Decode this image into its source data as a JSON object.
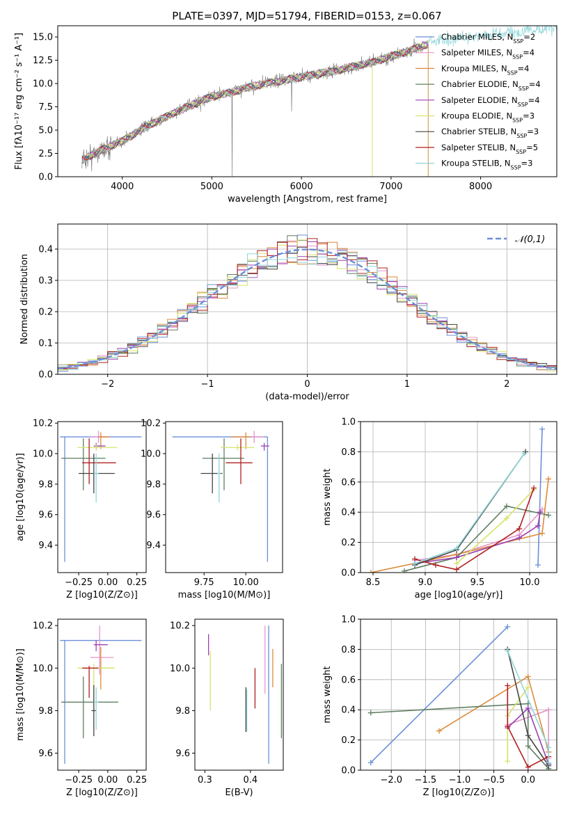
{
  "title": "PLATE=0397, MJD=51794, FIBERID=0153, z=0.067",
  "colors": {
    "series": [
      "#6a8fd8",
      "#e694c9",
      "#dd8a3a",
      "#5e7e60",
      "#9b3fb3",
      "#d6e36a",
      "#444444",
      "#b01e1e",
      "#8fd6d9"
    ],
    "data": "#808080",
    "normal": "#6a8fd8"
  },
  "legend": [
    {
      "name": "Chabrier MILES",
      "n": "2"
    },
    {
      "name": "Salpeter MILES",
      "n": "4"
    },
    {
      "name": "Kroupa MILES",
      "n": "4"
    },
    {
      "name": "Chabrier ELODIE",
      "n": "4"
    },
    {
      "name": "Salpeter ELODIE",
      "n": "4"
    },
    {
      "name": "Kroupa ELODIE",
      "n": "3"
    },
    {
      "name": "Chabrier STELIB",
      "n": "3"
    },
    {
      "name": "Salpeter STELIB",
      "n": "5"
    },
    {
      "name": "Kroupa STELIB",
      "n": "3"
    }
  ],
  "legend_n_label": "N",
  "legend_n_sub": "SSP",
  "chart_data": [
    {
      "id": "spectrum",
      "type": "line",
      "xlabel": "wavelength [Angstrom, rest frame]",
      "ylabel": "Flux [fλ10⁻¹⁷ erg cm⁻² s⁻¹ A⁻¹]",
      "xlim": [
        3280,
        8850
      ],
      "ylim": [
        0,
        16.2
      ],
      "xticks": [
        4000,
        5000,
        6000,
        7000,
        8000
      ],
      "yticks": [
        0.0,
        2.5,
        5.0,
        7.5,
        10.0,
        12.5,
        15.0
      ],
      "continuum": {
        "x": [
          3550,
          3800,
          4000,
          4200,
          4500,
          4800,
          5000,
          5300,
          5600,
          6000,
          6400,
          6800,
          7200,
          7400
        ],
        "y": [
          1.8,
          3.0,
          3.8,
          5.0,
          6.5,
          7.8,
          8.6,
          9.3,
          10.0,
          10.7,
          11.4,
          12.3,
          13.5,
          14.2
        ]
      },
      "legend_position": "right"
    },
    {
      "id": "residuals",
      "type": "histogram",
      "xlabel": "(data-model)/error",
      "ylabel": "Normed distribution",
      "xlim": [
        -2.5,
        2.5
      ],
      "ylim": [
        0,
        0.48
      ],
      "xticks": [
        -2,
        -1,
        0,
        1,
        2
      ],
      "yticks": [
        0.0,
        0.1,
        0.2,
        0.3,
        0.4
      ],
      "bin_width": 0.1,
      "legend": "𝒩(0,1)",
      "legend_position": "top-right",
      "normal": {
        "mean": 0,
        "sigma": 1
      }
    },
    {
      "id": "z_age",
      "type": "errorbar",
      "xlabel": "Z [log10(Z/Z⊙)]",
      "ylabel": "age [log10(age/yr)]",
      "xlim": [
        -0.43,
        0.33
      ],
      "ylim": [
        9.22,
        10.21
      ],
      "xticks": [
        -0.25,
        0.0,
        0.25
      ],
      "yticks": [
        9.4,
        9.6,
        9.8,
        10.0,
        10.2
      ],
      "points": [
        {
          "x": -0.37,
          "y": 10.11,
          "xerr": [
            0.04,
            0.66
          ],
          "yerr": [
            0.82,
            0.0
          ]
        },
        {
          "x": -0.08,
          "y": 10.11,
          "xerr": [
            0.07,
            0.08
          ],
          "yerr": [
            0.04,
            0.04
          ]
        },
        {
          "x": -0.06,
          "y": 10.11,
          "xerr": [
            0.02,
            0.08
          ],
          "yerr": [
            0.08,
            0.03
          ]
        },
        {
          "x": -0.21,
          "y": 9.97,
          "xerr": [
            0.19,
            0.19
          ],
          "yerr": [
            0.21,
            0.13
          ]
        },
        {
          "x": -0.1,
          "y": 10.05,
          "xerr": [
            0.02,
            0.08
          ],
          "yerr": [
            0.03,
            0.02
          ]
        },
        {
          "x": -0.1,
          "y": 10.04,
          "xerr": [
            0.16,
            0.18
          ],
          "yerr": [
            0.02,
            0.02
          ]
        },
        {
          "x": -0.12,
          "y": 9.87,
          "xerr": [
            0.13,
            0.18
          ],
          "yerr": [
            0.13,
            0.13
          ]
        },
        {
          "x": -0.16,
          "y": 9.94,
          "xerr": [
            0.06,
            0.23
          ],
          "yerr": [
            0.14,
            0.16
          ]
        },
        {
          "x": -0.1,
          "y": 9.87,
          "xerr": [
            0.02,
            0.02
          ],
          "yerr": [
            0.19,
            0.13
          ]
        }
      ]
    },
    {
      "id": "mass_age",
      "type": "errorbar",
      "xlabel": "mass [log10(M/M⊙)]",
      "ylabel": "",
      "xlim": [
        9.52,
        10.22
      ],
      "ylim": [
        9.22,
        10.21
      ],
      "xticks": [
        9.75,
        10.0
      ],
      "yticks": [
        9.4,
        9.6,
        9.8,
        10.0,
        10.2
      ],
      "points": [
        {
          "x": 10.13,
          "y": 10.11,
          "xerr": [
            0.57,
            0.0
          ],
          "yerr": [
            0.82,
            0.0
          ]
        },
        {
          "x": 10.05,
          "y": 10.11,
          "xerr": [
            0.02,
            0.06
          ],
          "yerr": [
            0.04,
            0.04
          ]
        },
        {
          "x": 10.0,
          "y": 10.11,
          "xerr": [
            0.09,
            0.03
          ],
          "yerr": [
            0.08,
            0.03
          ]
        },
        {
          "x": 9.87,
          "y": 9.97,
          "xerr": [
            0.13,
            0.12
          ],
          "yerr": [
            0.21,
            0.13
          ]
        },
        {
          "x": 10.11,
          "y": 10.05,
          "xerr": [
            0.02,
            0.03
          ],
          "yerr": [
            0.03,
            0.02
          ]
        },
        {
          "x": 9.95,
          "y": 10.04,
          "xerr": [
            0.1,
            0.1
          ],
          "yerr": [
            0.02,
            0.02
          ]
        },
        {
          "x": 9.8,
          "y": 9.87,
          "xerr": [
            0.07,
            0.06
          ],
          "yerr": [
            0.13,
            0.13
          ]
        },
        {
          "x": 9.97,
          "y": 9.94,
          "xerr": [
            0.09,
            0.07
          ],
          "yerr": [
            0.14,
            0.16
          ]
        },
        {
          "x": 9.84,
          "y": 9.87,
          "xerr": [
            0.01,
            0.01
          ],
          "yerr": [
            0.19,
            0.13
          ]
        }
      ]
    },
    {
      "id": "age_weight",
      "type": "line",
      "xlabel": "age [log10(age/yr)]",
      "ylabel": "mass weight",
      "xlim": [
        8.38,
        10.26
      ],
      "ylim": [
        0,
        1.0
      ],
      "xticks": [
        8.5,
        9.0,
        9.5,
        10.0
      ],
      "yticks": [
        0.0,
        0.2,
        0.4,
        0.6,
        0.8,
        1.0
      ],
      "series": [
        {
          "x": [
            10.08,
            10.12
          ],
          "y": [
            0.05,
            0.95
          ]
        },
        {
          "x": [
            8.9,
            9.3,
            9.9,
            10.1,
            10.12
          ],
          "y": [
            0.08,
            0.12,
            0.25,
            0.4,
            0.42
          ]
        },
        {
          "x": [
            8.48,
            9.3,
            10.12,
            10.18
          ],
          "y": [
            0.0,
            0.12,
            0.26,
            0.62
          ]
        },
        {
          "x": [
            8.8,
            9.3,
            9.78,
            10.18
          ],
          "y": [
            0.01,
            0.1,
            0.44,
            0.38
          ]
        },
        {
          "x": [
            8.9,
            9.3,
            9.9,
            10.08,
            10.1
          ],
          "y": [
            0.06,
            0.1,
            0.23,
            0.31,
            0.4
          ]
        },
        {
          "x": [
            9.3,
            9.78,
            10.04
          ],
          "y": [
            0.06,
            0.36,
            0.55
          ]
        },
        {
          "x": [
            8.9,
            9.3,
            9.96
          ],
          "y": [
            0.05,
            0.15,
            0.8
          ]
        },
        {
          "x": [
            8.9,
            9.1,
            9.3,
            9.9,
            10.04
          ],
          "y": [
            0.09,
            0.05,
            0.02,
            0.29,
            0.56
          ]
        },
        {
          "x": [
            8.9,
            9.3,
            9.95
          ],
          "y": [
            0.06,
            0.16,
            0.79
          ]
        }
      ]
    },
    {
      "id": "z_mass",
      "type": "errorbar",
      "xlabel": "Z [log10(Z/Z⊙)]",
      "ylabel": "mass [log10(M/M⊙)]",
      "xlim": [
        -0.43,
        0.33
      ],
      "ylim": [
        9.52,
        10.23
      ],
      "xticks": [
        -0.25,
        0.0,
        0.25
      ],
      "yticks": [
        9.6,
        9.8,
        10.0,
        10.2
      ],
      "points": [
        {
          "x": -0.37,
          "y": 10.13,
          "xerr": [
            0.04,
            0.66
          ],
          "yerr": [
            0.58,
            0.0
          ]
        },
        {
          "x": -0.07,
          "y": 10.05,
          "xerr": [
            0.08,
            0.12
          ],
          "yerr": [
            0.08,
            0.15
          ]
        },
        {
          "x": -0.06,
          "y": 10.0,
          "xerr": [
            0.02,
            0.08
          ],
          "yerr": [
            0.1,
            0.1
          ]
        },
        {
          "x": -0.21,
          "y": 9.84,
          "xerr": [
            0.19,
            0.3
          ],
          "yerr": [
            0.17,
            0.12
          ]
        },
        {
          "x": -0.1,
          "y": 10.11,
          "xerr": [
            0.02,
            0.1
          ],
          "yerr": [
            0.03,
            0.02
          ]
        },
        {
          "x": -0.12,
          "y": 10.0,
          "xerr": [
            0.14,
            0.18
          ],
          "yerr": [
            0.2,
            0.02
          ]
        },
        {
          "x": -0.12,
          "y": 9.8,
          "xerr": [
            0.02,
            0.02
          ],
          "yerr": [
            0.12,
            0.12
          ]
        },
        {
          "x": -0.16,
          "y": 10.0,
          "xerr": [
            0.06,
            0.08
          ],
          "yerr": [
            0.14,
            0.01
          ]
        },
        {
          "x": -0.1,
          "y": 9.84,
          "xerr": [
            0.02,
            0.02
          ],
          "yerr": [
            0.13,
            0.07
          ]
        }
      ]
    },
    {
      "id": "ebv_mass",
      "type": "errorbar",
      "xlabel": "E(B-V)",
      "ylabel": "",
      "xlim": [
        0.278,
        0.472
      ],
      "ylim": [
        9.52,
        10.23
      ],
      "xticks": [
        0.3,
        0.4
      ],
      "yticks": [
        9.6,
        9.8,
        10.0,
        10.2
      ],
      "points": [
        {
          "x": 0.44,
          "y": 9.83,
          "xerr": [
            0,
            0
          ],
          "yerr": [
            0.28,
            0.37
          ]
        },
        {
          "x": 0.432,
          "y": 10.05,
          "xerr": [
            0,
            0
          ],
          "yerr": [
            0.17,
            0.15
          ]
        },
        {
          "x": 0.449,
          "y": 10.0,
          "xerr": [
            0,
            0
          ],
          "yerr": [
            0.09,
            0.09
          ]
        },
        {
          "x": 0.468,
          "y": 9.84,
          "xerr": [
            0,
            0
          ],
          "yerr": [
            0.17,
            0.18
          ]
        },
        {
          "x": 0.308,
          "y": 10.1,
          "xerr": [
            0,
            0
          ],
          "yerr": [
            0.04,
            0.06
          ]
        },
        {
          "x": 0.312,
          "y": 9.95,
          "xerr": [
            0,
            0
          ],
          "yerr": [
            0.15,
            0.13
          ]
        },
        {
          "x": 0.39,
          "y": 9.8,
          "xerr": [
            0,
            0
          ],
          "yerr": [
            0.1,
            0.11
          ]
        },
        {
          "x": 0.41,
          "y": 9.9,
          "xerr": [
            0,
            0
          ],
          "yerr": [
            0.09,
            0.1
          ]
        },
        {
          "x": 0.392,
          "y": 9.8,
          "xerr": [
            0,
            0
          ],
          "yerr": [
            0.1,
            0.1
          ]
        }
      ]
    },
    {
      "id": "z_weight",
      "type": "line",
      "xlabel": "Z [log10(Z/Z⊙)]",
      "ylabel": "mass weight",
      "xlim": [
        -2.45,
        0.42
      ],
      "ylim": [
        0,
        1.0
      ],
      "xticks": [
        -2.0,
        -1.5,
        -1.0,
        -0.5,
        0.0
      ],
      "yticks": [
        0.0,
        0.2,
        0.4,
        0.6,
        0.8,
        1.0
      ],
      "series": [
        {
          "x": [
            -2.3,
            -0.3
          ],
          "y": [
            0.05,
            0.95
          ]
        },
        {
          "x": [
            -0.3,
            0.3,
            0.3,
            0.3
          ],
          "y": [
            0.3,
            0.4,
            0.12,
            0.08
          ]
        },
        {
          "x": [
            -1.3,
            0.0,
            0.3
          ],
          "y": [
            0.26,
            0.62,
            0.12
          ]
        },
        {
          "x": [
            -2.3,
            0.0,
            0.0,
            0.3
          ],
          "y": [
            0.38,
            0.44,
            0.16,
            0.01
          ]
        },
        {
          "x": [
            -0.3,
            0.0,
            0.3
          ],
          "y": [
            0.28,
            0.41,
            0.04
          ]
        },
        {
          "x": [
            -0.3,
            -0.3,
            0.0
          ],
          "y": [
            0.06,
            0.36,
            0.55
          ]
        },
        {
          "x": [
            -0.3,
            0.0,
            0.3
          ],
          "y": [
            0.8,
            0.23,
            0.03
          ]
        },
        {
          "x": [
            -0.3,
            -0.3,
            0.0,
            0.3
          ],
          "y": [
            0.56,
            0.29,
            0.02,
            0.09
          ]
        },
        {
          "x": [
            -0.3,
            0.3,
            0.3
          ],
          "y": [
            0.79,
            0.15,
            0.05
          ]
        }
      ]
    }
  ]
}
